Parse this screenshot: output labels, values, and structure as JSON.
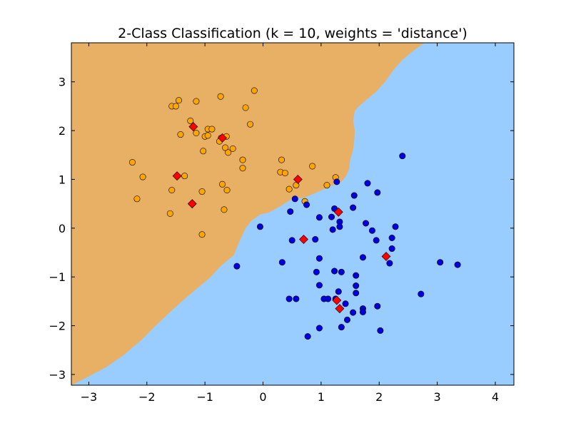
{
  "chart_data": {
    "type": "scatter",
    "title": "2-Class Classification (k = 10, weights = 'distance')",
    "xlabel": "",
    "ylabel": "",
    "xlim": [
      -3.3,
      4.32
    ],
    "ylim": [
      -3.22,
      3.8
    ],
    "x_ticks": [
      -3,
      -2,
      -1,
      0,
      1,
      2,
      3,
      4
    ],
    "y_ticks": [
      -3,
      -2,
      -1,
      0,
      1,
      2,
      3
    ],
    "x_tick_labels": [
      "−3",
      "−2",
      "−1",
      "0",
      "1",
      "2",
      "3",
      "4"
    ],
    "y_tick_labels": [
      "−3",
      "−2",
      "−1",
      "0",
      "1",
      "2",
      "3"
    ],
    "grid": false,
    "legend": "none",
    "colors": {
      "region_class_0": "#e8b064",
      "region_class_1": "#99ccff",
      "class_0_points": "#ffa500",
      "class_1_points": "#0000dd",
      "highlighted_points": "#ff0000",
      "marker_edge": "#000000"
    },
    "decision_boundary": [
      [
        -3.3,
        -3.22
      ],
      [
        -3.1,
        -3.1
      ],
      [
        -2.7,
        -2.85
      ],
      [
        -2.4,
        -2.6
      ],
      [
        -2.1,
        -2.3
      ],
      [
        -1.85,
        -2.0
      ],
      [
        -1.6,
        -1.72
      ],
      [
        -1.35,
        -1.45
      ],
      [
        -1.1,
        -1.2
      ],
      [
        -0.9,
        -1.0
      ],
      [
        -0.75,
        -0.8
      ],
      [
        -0.6,
        -0.65
      ],
      [
        -0.5,
        -0.55
      ],
      [
        -0.45,
        -0.4
      ],
      [
        -0.38,
        -0.2
      ],
      [
        -0.3,
        0.0
      ],
      [
        -0.2,
        0.15
      ],
      [
        -0.05,
        0.28
      ],
      [
        0.1,
        0.32
      ],
      [
        0.3,
        0.45
      ],
      [
        0.5,
        0.6
      ],
      [
        0.7,
        0.62
      ],
      [
        0.9,
        0.72
      ],
      [
        1.05,
        0.8
      ],
      [
        1.2,
        0.88
      ],
      [
        1.35,
        0.95
      ],
      [
        1.42,
        1.05
      ],
      [
        1.48,
        1.2
      ],
      [
        1.5,
        1.4
      ],
      [
        1.55,
        1.6
      ],
      [
        1.57,
        1.8
      ],
      [
        1.58,
        2.0
      ],
      [
        1.55,
        2.2
      ],
      [
        1.58,
        2.4
      ],
      [
        1.65,
        2.5
      ],
      [
        1.8,
        2.65
      ],
      [
        1.95,
        2.8
      ],
      [
        2.1,
        3.0
      ],
      [
        2.25,
        3.25
      ],
      [
        2.4,
        3.45
      ],
      [
        2.6,
        3.65
      ],
      [
        2.78,
        3.8
      ]
    ],
    "series": [
      {
        "class": "0",
        "marker": "circle",
        "points": [
          [
            -1.57,
            2.5
          ],
          [
            -1.5,
            2.5
          ],
          [
            -1.45,
            2.62
          ],
          [
            -1.15,
            2.6
          ],
          [
            -0.73,
            2.7
          ],
          [
            -0.15,
            2.82
          ],
          [
            -0.3,
            2.47
          ],
          [
            -1.25,
            2.2
          ],
          [
            -0.95,
            2.03
          ],
          [
            -0.88,
            2.03
          ],
          [
            -0.22,
            2.13
          ],
          [
            -1.42,
            1.92
          ],
          [
            -1.15,
            1.95
          ],
          [
            -1.0,
            1.88
          ],
          [
            -0.95,
            1.9
          ],
          [
            -0.72,
            1.85
          ],
          [
            -0.63,
            1.88
          ],
          [
            -0.75,
            1.78
          ],
          [
            -0.65,
            1.65
          ],
          [
            -0.52,
            1.63
          ],
          [
            -1.03,
            1.58
          ],
          [
            -0.6,
            1.55
          ],
          [
            -0.35,
            1.4
          ],
          [
            -0.35,
            1.23
          ],
          [
            0.32,
            1.4
          ],
          [
            0.3,
            1.15
          ],
          [
            0.38,
            1.13
          ],
          [
            0.85,
            1.27
          ],
          [
            1.25,
            1.04
          ],
          [
            -2.25,
            1.35
          ],
          [
            -2.07,
            1.05
          ],
          [
            -1.35,
            1.07
          ],
          [
            -0.7,
            0.9
          ],
          [
            -0.62,
            0.78
          ],
          [
            -1.57,
            0.78
          ],
          [
            -1.05,
            0.75
          ],
          [
            0.57,
            0.88
          ],
          [
            0.45,
            0.8
          ],
          [
            1.1,
            0.88
          ],
          [
            0.72,
            0.55
          ],
          [
            -2.17,
            0.6
          ],
          [
            -0.67,
            0.38
          ],
          [
            -1.6,
            0.3
          ],
          [
            -1.05,
            -0.13
          ]
        ]
      },
      {
        "class": "1",
        "marker": "circle",
        "points": [
          [
            2.4,
            1.48
          ],
          [
            1.27,
            0.95
          ],
          [
            1.8,
            0.92
          ],
          [
            1.97,
            0.73
          ],
          [
            1.57,
            0.67
          ],
          [
            0.55,
            0.6
          ],
          [
            0.75,
            0.48
          ],
          [
            1.55,
            0.42
          ],
          [
            1.23,
            0.4
          ],
          [
            0.47,
            0.34
          ],
          [
            1.18,
            0.23
          ],
          [
            0.97,
            0.22
          ],
          [
            1.32,
            0.13
          ],
          [
            1.77,
            0.1
          ],
          [
            1.32,
            0.03
          ],
          [
            2.28,
            0.03
          ],
          [
            1.2,
            -0.03
          ],
          [
            1.88,
            -0.05
          ],
          [
            -0.05,
            0.03
          ],
          [
            2.22,
            -0.2
          ],
          [
            0.5,
            -0.25
          ],
          [
            0.9,
            -0.23
          ],
          [
            1.95,
            -0.25
          ],
          [
            2.22,
            -0.42
          ],
          [
            0.97,
            -0.62
          ],
          [
            1.72,
            -0.6
          ],
          [
            2.18,
            -0.72
          ],
          [
            3.05,
            -0.7
          ],
          [
            3.35,
            -0.75
          ],
          [
            -0.45,
            -0.78
          ],
          [
            0.33,
            -0.7
          ],
          [
            1.23,
            -0.88
          ],
          [
            1.35,
            -0.9
          ],
          [
            0.92,
            -0.9
          ],
          [
            1.6,
            -0.97
          ],
          [
            0.97,
            -1.17
          ],
          [
            1.6,
            -1.18
          ],
          [
            1.3,
            -1.3
          ],
          [
            1.6,
            -1.33
          ],
          [
            2.72,
            -1.35
          ],
          [
            0.45,
            -1.45
          ],
          [
            0.57,
            -1.45
          ],
          [
            1.05,
            -1.45
          ],
          [
            1.12,
            -1.45
          ],
          [
            1.25,
            -1.45
          ],
          [
            1.42,
            -1.55
          ],
          [
            1.72,
            -1.65
          ],
          [
            1.72,
            -1.72
          ],
          [
            1.55,
            -1.73
          ],
          [
            1.97,
            -1.6
          ],
          [
            1.45,
            -1.88
          ],
          [
            0.97,
            -2.05
          ],
          [
            1.35,
            -2.03
          ],
          [
            2.02,
            -2.1
          ],
          [
            0.77,
            -2.22
          ]
        ]
      },
      {
        "class": "highlighted",
        "marker": "diamond",
        "points": [
          [
            -1.2,
            2.08
          ],
          [
            -0.7,
            1.85
          ],
          [
            -1.48,
            1.07
          ],
          [
            0.6,
            1.0
          ],
          [
            -1.22,
            0.5
          ],
          [
            1.3,
            0.33
          ],
          [
            0.7,
            -0.23
          ],
          [
            2.12,
            -0.58
          ],
          [
            1.27,
            -1.48
          ],
          [
            1.32,
            -1.65
          ]
        ]
      }
    ]
  }
}
